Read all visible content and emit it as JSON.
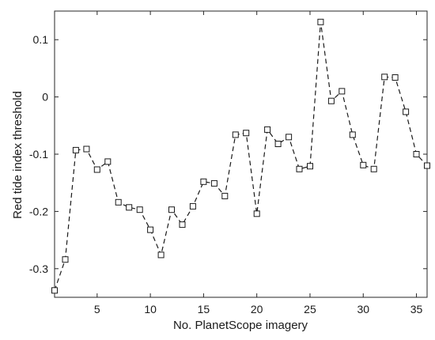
{
  "chart_data": {
    "type": "line",
    "title": "",
    "xlabel": "No. PlanetScope imagery",
    "ylabel": "Red tide index threshold",
    "xlim": [
      1,
      36
    ],
    "ylim": [
      -0.35,
      0.15
    ],
    "xticks": [
      5,
      10,
      15,
      20,
      25,
      30,
      35
    ],
    "yticks": [
      -0.3,
      -0.2,
      -0.1,
      0,
      0.1
    ],
    "ytick_labels": [
      "-0.3",
      "-0.2",
      "-0.1",
      "0",
      "0.1"
    ],
    "line_style": "dashed",
    "marker": "square",
    "grid": false,
    "legend": "none",
    "series_color": "#1a1a1a",
    "x": [
      1,
      2,
      3,
      4,
      5,
      6,
      7,
      8,
      9,
      10,
      11,
      12,
      13,
      14,
      15,
      16,
      17,
      18,
      19,
      20,
      21,
      22,
      23,
      24,
      25,
      26,
      27,
      28,
      29,
      30,
      31,
      32,
      33,
      34,
      35,
      36
    ],
    "values": [
      -0.338,
      -0.284,
      -0.093,
      -0.091,
      -0.127,
      -0.113,
      -0.184,
      -0.193,
      -0.197,
      -0.232,
      -0.276,
      -0.197,
      -0.223,
      -0.191,
      -0.148,
      -0.151,
      -0.173,
      -0.066,
      -0.063,
      -0.204,
      -0.057,
      -0.082,
      -0.07,
      -0.126,
      -0.121,
      0.131,
      -0.007,
      0.01,
      -0.066,
      -0.119,
      -0.126,
      0.035,
      0.034,
      -0.026,
      -0.1,
      -0.12
    ]
  }
}
